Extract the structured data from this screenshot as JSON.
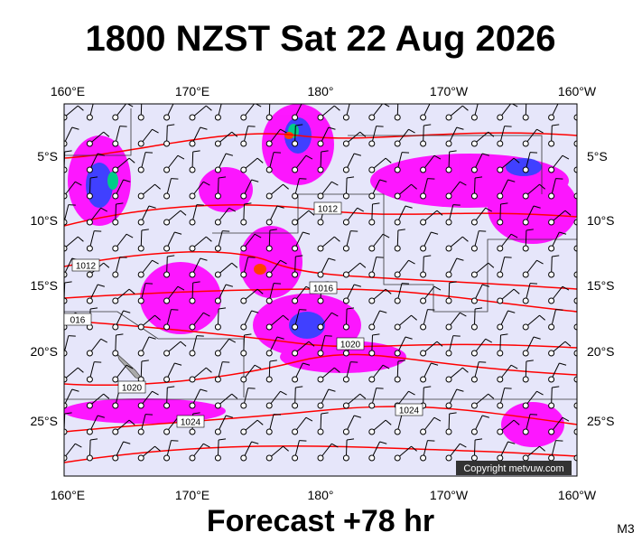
{
  "title": "1800 NZST Sat 22 Aug 2026",
  "footer": "Forecast +78 hr",
  "model": "M3",
  "copyright": "Copyright metvuw.com",
  "map": {
    "lon_labels_top": [
      "160°E",
      "170°E",
      "180°",
      "170°W",
      "160°W"
    ],
    "lon_labels_bottom": [
      "160°E",
      "170°E",
      "180°",
      "170°W",
      "160°W"
    ],
    "lat_labels_left": [
      "5°S",
      "10°S",
      "15°S",
      "20°S",
      "25°S"
    ],
    "lat_labels_right": [
      "5°S",
      "10°S",
      "15°S",
      "20°S",
      "25°S"
    ],
    "isobar_labels": [
      "1012",
      "1012",
      "1016",
      "016",
      "1020",
      "1020",
      "1024",
      "1024"
    ]
  }
}
